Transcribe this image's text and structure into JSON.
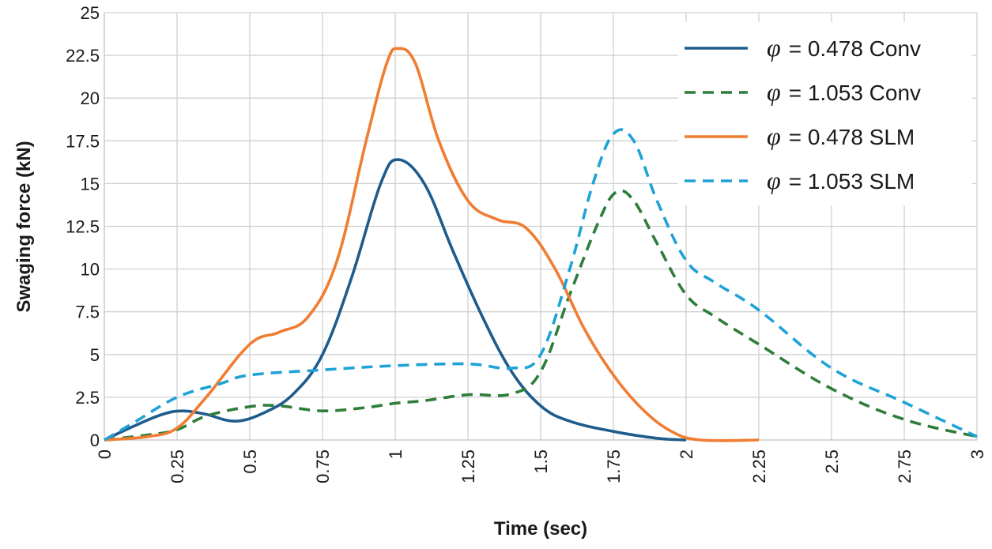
{
  "chart_data": {
    "type": "line",
    "title": "",
    "xlabel": "Time (sec)",
    "ylabel": "Swaging force (kN)",
    "xlim": [
      0,
      3
    ],
    "ylim": [
      0,
      25
    ],
    "x_ticks": [
      "0",
      "0.25",
      "0.5",
      "0.75",
      "1",
      "1.25",
      "1.5",
      "1.75",
      "2",
      "2.25",
      "2.5",
      "2.75",
      "3"
    ],
    "y_ticks": [
      "0",
      "2.5",
      "5",
      "7.5",
      "10",
      "12.5",
      "15",
      "17.5",
      "20",
      "22.5",
      "25"
    ],
    "grid": true,
    "legend_position": "top-right",
    "series": [
      {
        "name": "φ = 0.478 Conv",
        "symbol": "φ",
        "label_rest": "= 0.478 Conv",
        "color": "#1f5c8b",
        "dash": "solid",
        "points": [
          [
            0,
            0
          ],
          [
            0.1,
            0.8
          ],
          [
            0.2,
            1.5
          ],
          [
            0.27,
            1.7
          ],
          [
            0.35,
            1.5
          ],
          [
            0.45,
            1.1
          ],
          [
            0.55,
            1.6
          ],
          [
            0.65,
            2.7
          ],
          [
            0.75,
            5.0
          ],
          [
            0.85,
            9.5
          ],
          [
            0.95,
            15.0
          ],
          [
            1.01,
            16.4
          ],
          [
            1.1,
            15.0
          ],
          [
            1.2,
            11.0
          ],
          [
            1.3,
            7.2
          ],
          [
            1.4,
            4.0
          ],
          [
            1.5,
            2.0
          ],
          [
            1.6,
            1.1
          ],
          [
            1.75,
            0.5
          ],
          [
            1.9,
            0.1
          ],
          [
            2.0,
            0.0
          ]
        ]
      },
      {
        "name": "φ = 1.053 Conv",
        "symbol": "φ",
        "label_rest": "= 1.053 Conv",
        "color": "#2e7d3a",
        "dash": "dashed",
        "points": [
          [
            0,
            0
          ],
          [
            0.15,
            0.3
          ],
          [
            0.25,
            0.6
          ],
          [
            0.35,
            1.4
          ],
          [
            0.5,
            1.95
          ],
          [
            0.6,
            2.0
          ],
          [
            0.75,
            1.7
          ],
          [
            0.9,
            1.9
          ],
          [
            1.0,
            2.15
          ],
          [
            1.1,
            2.3
          ],
          [
            1.25,
            2.65
          ],
          [
            1.4,
            2.7
          ],
          [
            1.5,
            4.0
          ],
          [
            1.6,
            8.5
          ],
          [
            1.7,
            12.8
          ],
          [
            1.76,
            14.5
          ],
          [
            1.82,
            14.0
          ],
          [
            1.9,
            11.5
          ],
          [
            2.0,
            8.5
          ],
          [
            2.1,
            7.2
          ],
          [
            2.25,
            5.6
          ],
          [
            2.5,
            3.0
          ],
          [
            2.75,
            1.2
          ],
          [
            3.0,
            0.2
          ]
        ]
      },
      {
        "name": "φ = 0.478 SLM",
        "symbol": "φ",
        "label_rest": "= 0.478 SLM",
        "color": "#f07d32",
        "dash": "solid",
        "points": [
          [
            0,
            0
          ],
          [
            0.15,
            0.2
          ],
          [
            0.25,
            0.7
          ],
          [
            0.35,
            2.5
          ],
          [
            0.5,
            5.6
          ],
          [
            0.6,
            6.3
          ],
          [
            0.7,
            7.2
          ],
          [
            0.8,
            10.5
          ],
          [
            0.9,
            17.5
          ],
          [
            0.97,
            22.0
          ],
          [
            1.01,
            22.9
          ],
          [
            1.07,
            22.0
          ],
          [
            1.15,
            17.5
          ],
          [
            1.25,
            14.0
          ],
          [
            1.35,
            12.9
          ],
          [
            1.45,
            12.4
          ],
          [
            1.55,
            10.0
          ],
          [
            1.65,
            6.5
          ],
          [
            1.75,
            3.8
          ],
          [
            1.85,
            1.8
          ],
          [
            1.95,
            0.5
          ],
          [
            2.05,
            0.0
          ],
          [
            2.25,
            0.0
          ]
        ]
      },
      {
        "name": "φ = 1.053 SLM",
        "symbol": "φ",
        "label_rest": "= 1.053 SLM",
        "color": "#1fa2d6",
        "dash": "dashed",
        "points": [
          [
            0,
            0
          ],
          [
            0.1,
            1.0
          ],
          [
            0.25,
            2.5
          ],
          [
            0.4,
            3.3
          ],
          [
            0.5,
            3.8
          ],
          [
            0.75,
            4.1
          ],
          [
            1.0,
            4.35
          ],
          [
            1.25,
            4.45
          ],
          [
            1.4,
            4.2
          ],
          [
            1.5,
            5.0
          ],
          [
            1.6,
            10.0
          ],
          [
            1.68,
            15.0
          ],
          [
            1.75,
            17.9
          ],
          [
            1.82,
            17.5
          ],
          [
            1.9,
            14.0
          ],
          [
            2.0,
            10.5
          ],
          [
            2.1,
            9.2
          ],
          [
            2.25,
            7.6
          ],
          [
            2.5,
            4.2
          ],
          [
            2.75,
            2.2
          ],
          [
            3.0,
            0.2
          ]
        ]
      }
    ]
  }
}
